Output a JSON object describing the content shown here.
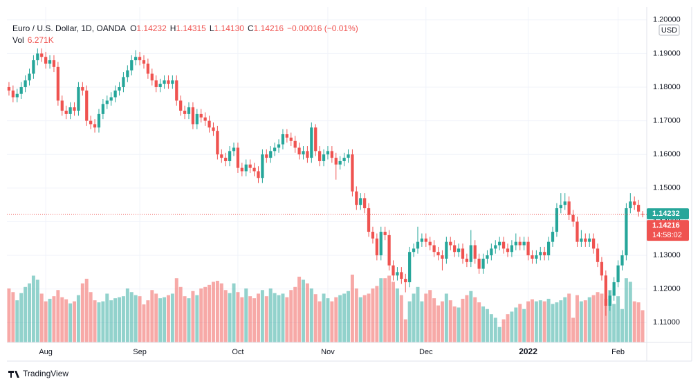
{
  "chart_data": {
    "type": "candlestick",
    "title": "Euro / U.S. Dollar, 1D, OANDA",
    "ohlc_labels": [
      "O",
      "H",
      "L",
      "C"
    ],
    "ohlc_values": [
      "1.14232",
      "1.14315",
      "1.14130",
      "1.14216"
    ],
    "change": "−0.00016 (−0.01%)",
    "volume_label": "Vol",
    "volume_value": "6.271K",
    "currency": "USD",
    "countdown": "14:58:02",
    "branding": "TradingView",
    "up_color": "#26a69a",
    "down_color": "#ef5350",
    "grid": true,
    "price_lines": [
      {
        "value": 1.14232,
        "label": "1.14232",
        "color": "#26a69a"
      },
      {
        "value": 1.14216,
        "label": "1.14216",
        "color": "#ef5350"
      }
    ],
    "xlim": [
      -0.5,
      155.5
    ],
    "xticks": [
      {
        "value": 9,
        "label": "Aug"
      },
      {
        "value": 32,
        "label": "Sep"
      },
      {
        "value": 56,
        "label": "Oct"
      },
      {
        "value": 78,
        "label": "Nov"
      },
      {
        "value": 102,
        "label": "Dec"
      },
      {
        "value": 127,
        "label": "2022"
      },
      {
        "value": 149,
        "label": "Feb"
      }
    ],
    "ylim": [
      1.1041,
      1.2018
    ],
    "yticks": [
      {
        "value": 1.11,
        "label": "1.11000"
      },
      {
        "value": 1.12,
        "label": "1.12000"
      },
      {
        "value": 1.13,
        "label": "1.13000"
      },
      {
        "value": 1.14,
        "label": "1.14000"
      },
      {
        "value": 1.15,
        "label": "1.15000"
      },
      {
        "value": 1.16,
        "label": "1.16000"
      },
      {
        "value": 1.17,
        "label": "1.17000"
      },
      {
        "value": 1.18,
        "label": "1.18000"
      },
      {
        "value": 1.19,
        "label": "1.19000"
      },
      {
        "value": 1.2,
        "label": "1.20000"
      }
    ],
    "open": [
      1.18,
      1.179,
      1.177,
      1.178,
      1.18,
      1.182,
      1.184,
      1.188,
      1.19,
      1.189,
      1.187,
      1.188,
      1.186,
      1.176,
      1.173,
      1.172,
      1.174,
      1.173,
      1.18,
      1.179,
      1.17,
      1.169,
      1.168,
      1.172,
      1.175,
      1.176,
      1.177,
      1.179,
      1.18,
      1.183,
      1.185,
      1.188,
      1.189,
      1.188,
      1.187,
      1.184,
      1.182,
      1.18,
      1.181,
      1.182,
      1.181,
      1.182,
      1.176,
      1.173,
      1.172,
      1.174,
      1.169,
      1.172,
      1.171,
      1.17,
      1.168,
      1.167,
      1.16,
      1.159,
      1.158,
      1.161,
      1.162,
      1.156,
      1.155,
      1.157,
      1.156,
      1.155,
      1.153,
      1.16,
      1.159,
      1.161,
      1.162,
      1.163,
      1.166,
      1.165,
      1.164,
      1.162,
      1.16,
      1.161,
      1.159,
      1.168,
      1.161,
      1.158,
      1.16,
      1.161,
      1.159,
      1.157,
      1.158,
      1.159,
      1.16,
      1.149,
      1.145,
      1.147,
      1.144,
      1.137,
      1.135,
      1.13,
      1.137,
      1.136,
      1.127,
      1.124,
      1.125,
      1.123,
      1.122,
      1.131,
      1.132,
      1.134,
      1.135,
      1.134,
      1.133,
      1.131,
      1.13,
      1.129,
      1.134,
      1.133,
      1.131,
      1.132,
      1.129,
      1.128,
      1.133,
      1.129,
      1.126,
      1.129,
      1.13,
      1.132,
      1.133,
      1.134,
      1.132,
      1.131,
      1.133,
      1.134,
      1.133,
      1.134,
      1.13,
      1.129,
      1.13,
      1.131,
      1.13,
      1.134,
      1.137,
      1.144,
      1.145,
      1.146,
      1.142,
      1.14,
      1.134,
      1.135,
      1.134,
      1.135,
      1.132,
      1.128,
      1.124,
      1.115,
      1.118,
      1.122,
      1.127,
      1.13,
      1.144,
      1.146,
      1.145,
      1.14232
    ],
    "high": [
      1.1815,
      1.1805,
      1.1795,
      1.1815,
      1.1835,
      1.1855,
      1.1895,
      1.1915,
      1.1915,
      1.1905,
      1.1895,
      1.1895,
      1.1875,
      1.1775,
      1.1745,
      1.1755,
      1.1755,
      1.1815,
      1.1815,
      1.1805,
      1.1715,
      1.1705,
      1.1735,
      1.1765,
      1.1775,
      1.1785,
      1.1805,
      1.1815,
      1.1845,
      1.1865,
      1.1895,
      1.191,
      1.1905,
      1.1895,
      1.1885,
      1.1855,
      1.1835,
      1.1825,
      1.1835,
      1.1835,
      1.1835,
      1.1835,
      1.1775,
      1.1745,
      1.1755,
      1.1755,
      1.1735,
      1.1735,
      1.1725,
      1.1715,
      1.1695,
      1.1685,
      1.1615,
      1.1605,
      1.1625,
      1.1635,
      1.1635,
      1.1575,
      1.1585,
      1.1585,
      1.1575,
      1.1565,
      1.1615,
      1.1615,
      1.1625,
      1.1635,
      1.1645,
      1.1675,
      1.1675,
      1.1665,
      1.1655,
      1.1635,
      1.1625,
      1.1625,
      1.1695,
      1.169,
      1.1625,
      1.1615,
      1.1625,
      1.1625,
      1.1605,
      1.1595,
      1.1605,
      1.1615,
      1.1615,
      1.1505,
      1.1485,
      1.1485,
      1.1455,
      1.1385,
      1.1365,
      1.1385,
      1.1385,
      1.1375,
      1.1285,
      1.1265,
      1.1265,
      1.1245,
      1.1325,
      1.1335,
      1.1385,
      1.1365,
      1.1365,
      1.1355,
      1.1345,
      1.1325,
      1.1315,
      1.1355,
      1.1355,
      1.1345,
      1.1335,
      1.1335,
      1.1305,
      1.1375,
      1.1345,
      1.1305,
      1.1305,
      1.1315,
      1.1335,
      1.1345,
      1.1355,
      1.1355,
      1.1335,
      1.1345,
      1.1365,
      1.1355,
      1.1355,
      1.1355,
      1.1315,
      1.1315,
      1.1325,
      1.1325,
      1.1355,
      1.1385,
      1.1455,
      1.1485,
      1.1485,
      1.1475,
      1.1435,
      1.1415,
      1.1375,
      1.1365,
      1.1365,
      1.1365,
      1.1335,
      1.1295,
      1.1255,
      1.1195,
      1.1235,
      1.1285,
      1.1315,
      1.1455,
      1.1485,
      1.1475,
      1.1465,
      1.14315
    ],
    "low": [
      1.1775,
      1.1755,
      1.1755,
      1.1765,
      1.1785,
      1.1805,
      1.1825,
      1.1865,
      1.1875,
      1.1855,
      1.1855,
      1.1845,
      1.1745,
      1.1715,
      1.1705,
      1.1705,
      1.1715,
      1.1715,
      1.1775,
      1.1685,
      1.1675,
      1.1665,
      1.1665,
      1.1705,
      1.1735,
      1.1745,
      1.1755,
      1.1775,
      1.1785,
      1.1815,
      1.1835,
      1.1865,
      1.1865,
      1.1855,
      1.1825,
      1.1805,
      1.1785,
      1.1785,
      1.1795,
      1.1795,
      1.1795,
      1.1745,
      1.1715,
      1.1705,
      1.1705,
      1.1675,
      1.1675,
      1.1695,
      1.1685,
      1.1665,
      1.1655,
      1.1585,
      1.1575,
      1.1565,
      1.1565,
      1.1595,
      1.1545,
      1.1535,
      1.1535,
      1.1545,
      1.1535,
      1.1515,
      1.1515,
      1.1575,
      1.1575,
      1.1595,
      1.1605,
      1.1615,
      1.1635,
      1.1625,
      1.1605,
      1.1585,
      1.1585,
      1.1575,
      1.1575,
      1.1595,
      1.1565,
      1.1565,
      1.1585,
      1.1575,
      1.1525,
      1.1555,
      1.1565,
      1.1575,
      1.1475,
      1.1435,
      1.1435,
      1.1425,
      1.1355,
      1.1335,
      1.1285,
      1.1285,
      1.1345,
      1.1255,
      1.1225,
      1.1225,
      1.1215,
      1.119,
      1.1205,
      1.1295,
      1.1305,
      1.1325,
      1.1325,
      1.1315,
      1.1295,
      1.1285,
      1.1255,
      1.1275,
      1.1315,
      1.1295,
      1.1295,
      1.1275,
      1.1265,
      1.1265,
      1.1275,
      1.1245,
      1.1245,
      1.1275,
      1.1285,
      1.1305,
      1.1315,
      1.1305,
      1.1295,
      1.1295,
      1.1315,
      1.1315,
      1.1315,
      1.1285,
      1.1275,
      1.1275,
      1.1285,
      1.1285,
      1.1285,
      1.1325,
      1.1355,
      1.1425,
      1.1435,
      1.1405,
      1.1385,
      1.1325,
      1.1325,
      1.1325,
      1.1325,
      1.1305,
      1.1265,
      1.1225,
      1.112,
      1.1135,
      1.1165,
      1.1205,
      1.1255,
      1.1285,
      1.1425,
      1.1435,
      1.1415,
      1.1413
    ],
    "close": [
      1.179,
      1.177,
      1.178,
      1.18,
      1.182,
      1.184,
      1.188,
      1.19,
      1.189,
      1.187,
      1.188,
      1.186,
      1.176,
      1.173,
      1.172,
      1.174,
      1.173,
      1.18,
      1.179,
      1.17,
      1.169,
      1.168,
      1.172,
      1.175,
      1.176,
      1.177,
      1.179,
      1.18,
      1.183,
      1.185,
      1.188,
      1.189,
      1.188,
      1.187,
      1.184,
      1.182,
      1.18,
      1.181,
      1.182,
      1.181,
      1.182,
      1.176,
      1.173,
      1.172,
      1.174,
      1.169,
      1.172,
      1.171,
      1.17,
      1.168,
      1.167,
      1.16,
      1.159,
      1.158,
      1.161,
      1.162,
      1.156,
      1.155,
      1.157,
      1.156,
      1.155,
      1.153,
      1.16,
      1.159,
      1.161,
      1.162,
      1.163,
      1.166,
      1.165,
      1.164,
      1.162,
      1.16,
      1.161,
      1.159,
      1.168,
      1.161,
      1.158,
      1.16,
      1.161,
      1.159,
      1.157,
      1.158,
      1.159,
      1.16,
      1.149,
      1.145,
      1.147,
      1.144,
      1.137,
      1.135,
      1.13,
      1.137,
      1.136,
      1.127,
      1.124,
      1.125,
      1.123,
      1.122,
      1.131,
      1.132,
      1.134,
      1.135,
      1.134,
      1.133,
      1.131,
      1.13,
      1.129,
      1.134,
      1.133,
      1.131,
      1.132,
      1.129,
      1.128,
      1.133,
      1.129,
      1.126,
      1.129,
      1.13,
      1.132,
      1.133,
      1.134,
      1.132,
      1.131,
      1.133,
      1.134,
      1.133,
      1.134,
      1.13,
      1.129,
      1.13,
      1.131,
      1.13,
      1.134,
      1.137,
      1.144,
      1.145,
      1.146,
      1.142,
      1.14,
      1.134,
      1.135,
      1.134,
      1.135,
      1.132,
      1.128,
      1.124,
      1.115,
      1.118,
      1.122,
      1.127,
      1.13,
      1.144,
      1.146,
      1.145,
      1.143,
      1.14216
    ],
    "volume": [
      10.5,
      9.8,
      8.2,
      9.6,
      10.8,
      11.5,
      13.0,
      12.2,
      9.5,
      8.0,
      8.5,
      9.0,
      10.2,
      8.8,
      8.4,
      7.6,
      8.0,
      9.2,
      11.5,
      12.4,
      9.8,
      8.2,
      7.8,
      8.0,
      9.5,
      8.2,
      8.6,
      8.8,
      9.0,
      10.5,
      9.8,
      9.2,
      9.0,
      7.4,
      8.2,
      10.2,
      9.5,
      8.6,
      8.8,
      9.2,
      9.5,
      12.5,
      10.8,
      9.0,
      8.6,
      10.0,
      9.2,
      10.5,
      10.8,
      11.2,
      11.8,
      12.0,
      11.5,
      10.2,
      9.6,
      11.5,
      9.8,
      8.8,
      10.5,
      9.0,
      8.6,
      9.5,
      10.2,
      9.0,
      10.5,
      9.6,
      9.2,
      9.5,
      8.8,
      10.2,
      10.8,
      12.8,
      12.2,
      11.5,
      10.5,
      9.4,
      8.0,
      9.5,
      8.6,
      8.0,
      8.8,
      9.2,
      9.5,
      10.0,
      13.2,
      10.5,
      8.8,
      9.2,
      9.5,
      10.5,
      11.0,
      12.5,
      12.5,
      13.0,
      11.8,
      10.5,
      9.2,
      4.5,
      8.0,
      9.5,
      10.8,
      8.0,
      9.5,
      10.2,
      8.6,
      7.2,
      8.0,
      9.5,
      8.2,
      7.0,
      6.8,
      8.5,
      9.2,
      10.0,
      8.8,
      7.8,
      7.0,
      6.5,
      5.5,
      4.8,
      3.0,
      4.5,
      5.5,
      6.0,
      6.8,
      7.5,
      6.5,
      8.0,
      8.4,
      8.0,
      8.2,
      8.0,
      8.5,
      7.5,
      7.8,
      8.2,
      8.8,
      9.5,
      4.8,
      9.2,
      8.0,
      8.2,
      8.8,
      9.2,
      9.8,
      9.5,
      8.5,
      10.2,
      7.5,
      9.0,
      6.5,
      12.5,
      11.8,
      8.0,
      7.8,
      6.271
    ]
  }
}
